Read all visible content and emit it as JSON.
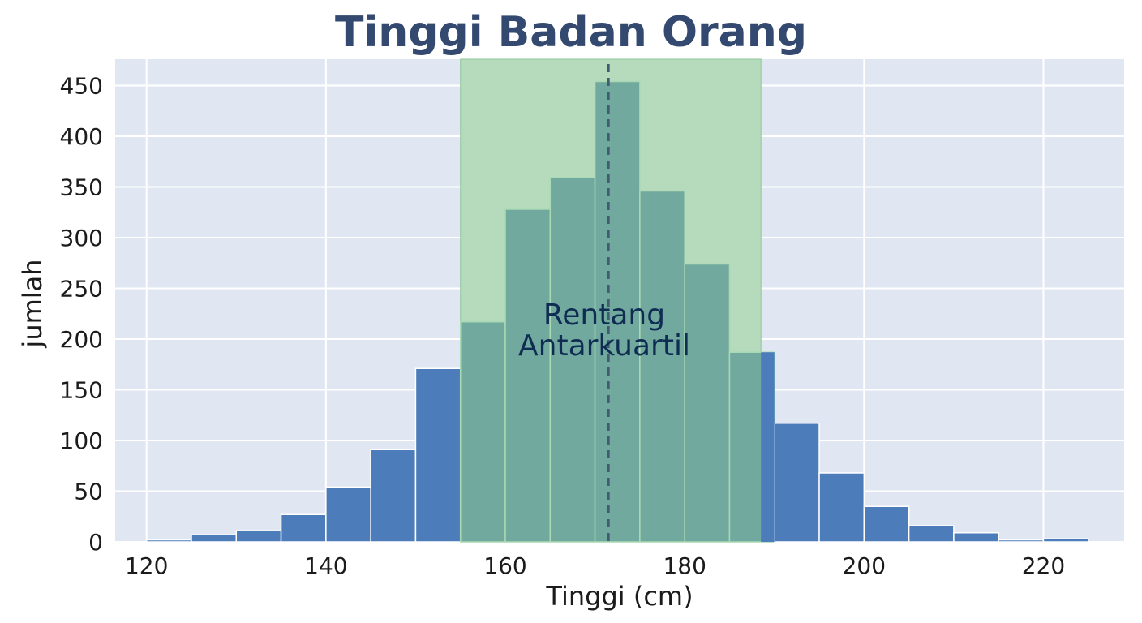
{
  "chart_data": {
    "type": "bar",
    "title": "Tinggi Badan Orang",
    "xlabel": "Tinggi (cm)",
    "ylabel": "jumlah",
    "bin_width": 5,
    "bins": [
      {
        "start": 120,
        "end": 125,
        "count": 2
      },
      {
        "start": 125,
        "end": 130,
        "count": 7
      },
      {
        "start": 130,
        "end": 135,
        "count": 11
      },
      {
        "start": 135,
        "end": 140,
        "count": 27
      },
      {
        "start": 140,
        "end": 145,
        "count": 54
      },
      {
        "start": 145,
        "end": 150,
        "count": 91
      },
      {
        "start": 150,
        "end": 155,
        "count": 171
      },
      {
        "start": 155,
        "end": 160,
        "count": 217
      },
      {
        "start": 160,
        "end": 165,
        "count": 328
      },
      {
        "start": 165,
        "end": 170,
        "count": 359
      },
      {
        "start": 170,
        "end": 175,
        "count": 454
      },
      {
        "start": 175,
        "end": 180,
        "count": 346
      },
      {
        "start": 180,
        "end": 185,
        "count": 274
      },
      {
        "start": 185,
        "end": 190,
        "count": 187
      },
      {
        "start": 190,
        "end": 195,
        "count": 117
      },
      {
        "start": 195,
        "end": 200,
        "count": 68
      },
      {
        "start": 200,
        "end": 205,
        "count": 35
      },
      {
        "start": 205,
        "end": 210,
        "count": 16
      },
      {
        "start": 210,
        "end": 215,
        "count": 9
      },
      {
        "start": 215,
        "end": 220,
        "count": 2
      },
      {
        "start": 220,
        "end": 225,
        "count": 3
      }
    ],
    "xlim": [
      116.5,
      229
    ],
    "ylim": [
      0,
      476
    ],
    "xticks": [
      120,
      140,
      160,
      180,
      200,
      220
    ],
    "yticks": [
      0,
      50,
      100,
      150,
      200,
      250,
      300,
      350,
      400,
      450
    ],
    "iqr": {
      "q1": 155,
      "q3": 188.5
    },
    "median": 171.5,
    "annotation": [
      "Rentang",
      "Antarkuartil"
    ],
    "grid": true,
    "colors": {
      "bar": "#4c7dba",
      "bar_in_iqr": "#72a99f",
      "iqr_band": "#b5dabc",
      "background": "#e1e7f2",
      "grid": "#ffffff",
      "median_line": "#405c6e",
      "title": "#34496f",
      "annotation": "#0f2c52"
    }
  }
}
